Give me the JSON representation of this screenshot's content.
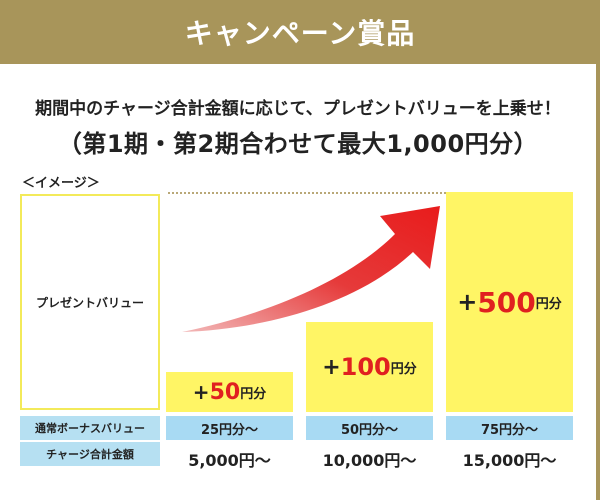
{
  "header": {
    "title": "キャンペーン賞品"
  },
  "intro": {
    "line1": "期間中のチャージ合計金額に応じて、プレゼントバリューを上乗せ！",
    "line2": "（第1期・第2期合わせて最大1,000円分）"
  },
  "image_label": "＜イメージ＞",
  "legend": {
    "present_value": "プレゼントバリュー",
    "bonus_label": "通常ボーナスバリュー",
    "amount_label": "チャージ合計金額"
  },
  "tiers": [
    {
      "plus": "+",
      "value": "50",
      "unit": "円分",
      "bonus": "25円分～",
      "amount": "5,000円～"
    },
    {
      "plus": "+",
      "value": "100",
      "unit": "円分",
      "bonus": "50円分～",
      "amount": "10,000円～"
    },
    {
      "plus": "+",
      "value": "500",
      "unit": "円分",
      "bonus": "75円分～",
      "amount": "15,000円～"
    }
  ],
  "colors": {
    "header_bg": "#a8955a",
    "bar_yellow": "#fff565",
    "bonus_blue": "#a8daf3",
    "accent_red": "#e02020"
  }
}
